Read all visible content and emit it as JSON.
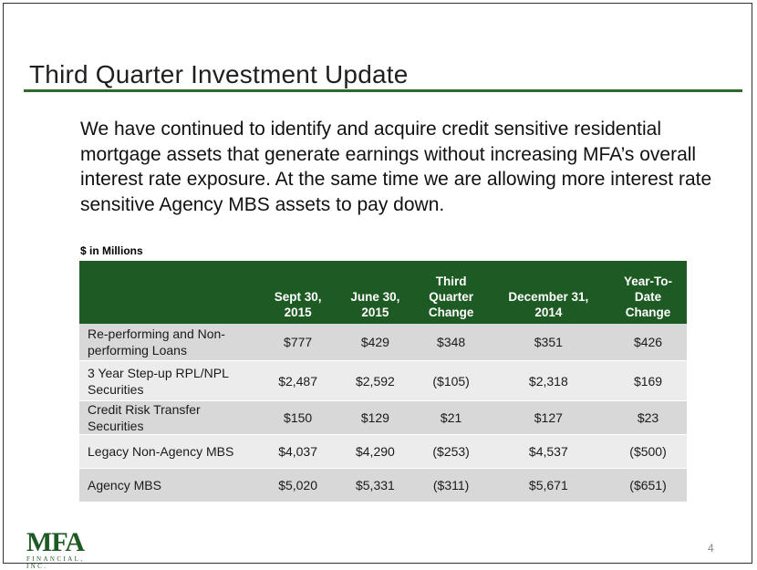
{
  "slide": {
    "title": "Third Quarter Investment Update",
    "intro": "We have continued to identify and acquire credit sensitive residential mortgage assets that generate earnings without increasing MFA’s overall interest rate exposure. At the same time we are allowing more interest rate sensitive Agency MBS assets to pay down.",
    "units_note": "$ in Millions",
    "page_number": "4",
    "logo": {
      "mark": "MFA",
      "subtitle": "FINANCIAL, INC."
    }
  },
  "table": {
    "headers": [
      "",
      "Sept  30,\n2015",
      "June  30,\n2015",
      "Third\nQuarter\nChange",
      "December 31,\n2014",
      "Year-To-\nDate\nChange"
    ],
    "rows": [
      {
        "label": "Re-performing and Non-performing Loans",
        "values": [
          "$777",
          "$429",
          "$348",
          "$351",
          "$426"
        ]
      },
      {
        "label": "3 Year Step-up RPL/NPL Securities",
        "values": [
          "$2,487",
          "$2,592",
          "($105)",
          "$2,318",
          "$169"
        ]
      },
      {
        "label": "Credit Risk Transfer Securities",
        "values": [
          "$150",
          "$129",
          "$21",
          "$127",
          "$23"
        ]
      },
      {
        "label": "Legacy Non-Agency MBS",
        "values": [
          "$4,037",
          "$4,290",
          "($253)",
          "$4,537",
          "($500)"
        ]
      },
      {
        "label": "Agency MBS",
        "values": [
          "$5,020",
          "$5,331",
          "($311)",
          "$5,671",
          "($651)"
        ]
      }
    ]
  },
  "colors": {
    "accent_green": "#1e5a23",
    "rule_green": "#2e6a2b",
    "row_dark": "#d8d8d8",
    "row_light": "#ececec"
  }
}
